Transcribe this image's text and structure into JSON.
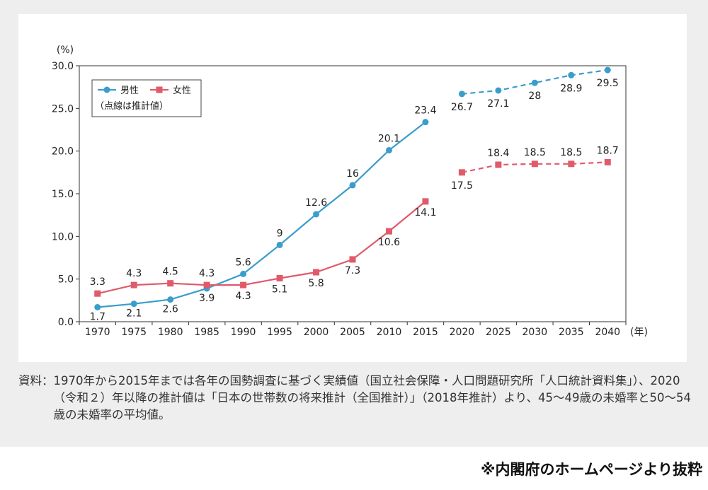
{
  "chart_data": {
    "type": "line",
    "y_unit_label": "(%)",
    "x_unit_label": "(年)",
    "categories": [
      "1970",
      "1975",
      "1980",
      "1985",
      "1990",
      "1995",
      "2000",
      "2005",
      "2010",
      "2015",
      "2020",
      "2025",
      "2030",
      "2035",
      "2040"
    ],
    "ylim": [
      0,
      30
    ],
    "yticks": [
      "0.0",
      "5.0",
      "10.0",
      "15.0",
      "20.0",
      "25.0",
      "30.0"
    ],
    "grid": false,
    "legend_position": "top-left",
    "legend_note": "（点線は推計値）",
    "series": [
      {
        "name": "男性",
        "color": "#3a9dcc",
        "actual": {
          "x": [
            "1970",
            "1975",
            "1980",
            "1985",
            "1990",
            "1995",
            "2000",
            "2005",
            "2010",
            "2015"
          ],
          "values": [
            1.7,
            2.1,
            2.6,
            3.9,
            5.6,
            9.0,
            12.6,
            16.0,
            20.1,
            23.4
          ]
        },
        "projected": {
          "x": [
            "2020",
            "2025",
            "2030",
            "2035",
            "2040"
          ],
          "values": [
            26.7,
            27.1,
            28.0,
            28.9,
            29.5
          ]
        }
      },
      {
        "name": "女性",
        "color": "#e05a6a",
        "actual": {
          "x": [
            "1970",
            "1975",
            "1980",
            "1985",
            "1990",
            "1995",
            "2000",
            "2005",
            "2010",
            "2015"
          ],
          "values": [
            3.3,
            4.3,
            4.5,
            4.3,
            4.3,
            5.1,
            5.8,
            7.3,
            10.6,
            14.1
          ]
        },
        "projected": {
          "x": [
            "2020",
            "2025",
            "2030",
            "2035",
            "2040"
          ],
          "values": [
            17.5,
            18.4,
            18.5,
            18.5,
            18.7
          ]
        }
      }
    ]
  },
  "source": {
    "label": "資料：",
    "text": "1970年から2015年までは各年の国勢調査に基づく実績値（国立社会保障・人口問題研究所「人口統計資料集」）、2020（令和２）年以降の推計値は「日本の世帯数の将来推計（全国推計）」（2018年推計）より、45〜49歳の未婚率と50〜54歳の未婚率の平均値。"
  },
  "attribution": "※内閣府のホームページより抜粋"
}
